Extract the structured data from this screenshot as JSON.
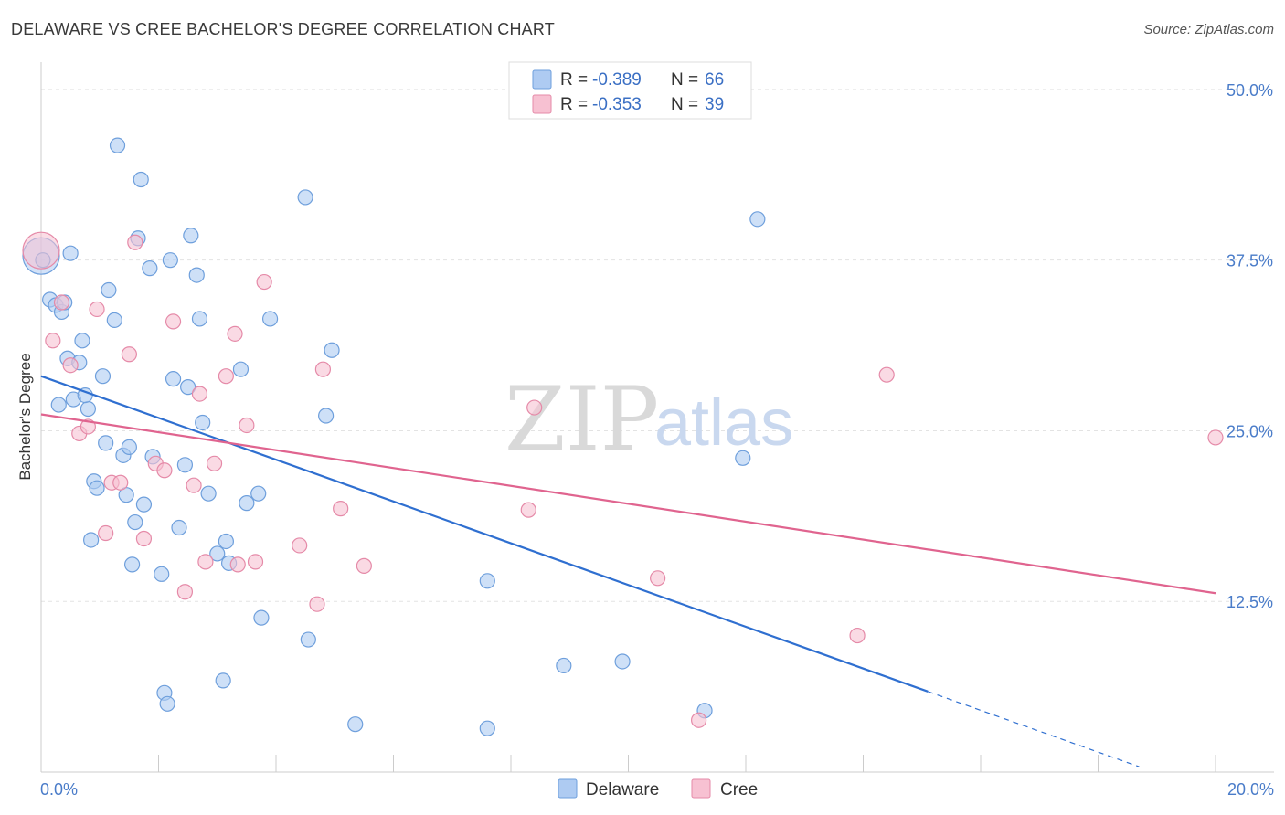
{
  "header": {
    "title": "DELAWARE VS CREE BACHELOR'S DEGREE CORRELATION CHART",
    "source": "Source: ZipAtlas.com"
  },
  "watermark": {
    "zip": "ZIP",
    "atlas": "atlas"
  },
  "legend_top": {
    "rows": [
      {
        "r_label": "R =",
        "r_value": "-0.389",
        "n_label": "N =",
        "n_value": "66"
      },
      {
        "r_label": "R =",
        "r_value": "-0.353",
        "n_label": "N =",
        "n_value": "39"
      }
    ]
  },
  "colors": {
    "delaware_fill": "#aecbf2",
    "delaware_stroke": "#6e9fdc",
    "delaware_line": "#2f6fd0",
    "cree_fill": "#f7c1d2",
    "cree_stroke": "#e58aa8",
    "cree_line": "#e0648f"
  },
  "chart_data": {
    "type": "scatter",
    "title": "DELAWARE VS CREE BACHELOR'S DEGREE CORRELATION CHART",
    "xlabel": "",
    "ylabel": "Bachelor's Degree",
    "xlim": [
      0,
      20
    ],
    "ylim": [
      0,
      52
    ],
    "x_tick_labels": {
      "min": "0.0%",
      "max": "20.0%"
    },
    "y_ticks": [
      12.5,
      25.0,
      37.5,
      50.0
    ],
    "y_tick_labels": [
      "12.5%",
      "25.0%",
      "37.5%",
      "50.0%"
    ],
    "grid": true,
    "legend": [
      "Delaware",
      "Cree"
    ],
    "series": [
      {
        "name": "Delaware",
        "r": -0.389,
        "n": 66,
        "trend": {
          "x0": 0.0,
          "y0": 29.0,
          "x1": 15.1,
          "y1": 5.9,
          "dash_to_x": 18.7
        },
        "points": [
          [
            0.0,
            37.8
          ],
          [
            0.03,
            37.5
          ],
          [
            0.15,
            34.6
          ],
          [
            0.25,
            34.2
          ],
          [
            0.35,
            33.7
          ],
          [
            0.4,
            34.4
          ],
          [
            0.5,
            38.0
          ],
          [
            0.45,
            30.3
          ],
          [
            0.65,
            30.0
          ],
          [
            0.7,
            31.6
          ],
          [
            0.3,
            26.9
          ],
          [
            0.55,
            27.3
          ],
          [
            0.8,
            26.6
          ],
          [
            0.75,
            27.6
          ],
          [
            1.05,
            29.0
          ],
          [
            1.15,
            35.3
          ],
          [
            1.25,
            33.1
          ],
          [
            1.1,
            24.1
          ],
          [
            1.4,
            23.2
          ],
          [
            1.5,
            23.8
          ],
          [
            0.9,
            21.3
          ],
          [
            0.95,
            20.8
          ],
          [
            1.45,
            20.3
          ],
          [
            1.6,
            18.3
          ],
          [
            1.75,
            19.6
          ],
          [
            1.9,
            23.1
          ],
          [
            1.55,
            15.2
          ],
          [
            2.05,
            14.5
          ],
          [
            0.85,
            17.0
          ],
          [
            1.3,
            45.9
          ],
          [
            1.7,
            43.4
          ],
          [
            1.65,
            39.1
          ],
          [
            1.85,
            36.9
          ],
          [
            2.2,
            37.5
          ],
          [
            2.55,
            39.3
          ],
          [
            2.65,
            36.4
          ],
          [
            2.7,
            33.2
          ],
          [
            2.25,
            28.8
          ],
          [
            2.5,
            28.2
          ],
          [
            2.75,
            25.6
          ],
          [
            2.45,
            22.5
          ],
          [
            2.85,
            20.4
          ],
          [
            2.35,
            17.9
          ],
          [
            3.0,
            16.0
          ],
          [
            3.15,
            16.9
          ],
          [
            3.2,
            15.3
          ],
          [
            3.4,
            29.5
          ],
          [
            3.5,
            19.7
          ],
          [
            3.7,
            20.4
          ],
          [
            3.9,
            33.2
          ],
          [
            4.5,
            42.1
          ],
          [
            4.95,
            30.9
          ],
          [
            4.85,
            26.1
          ],
          [
            3.75,
            11.3
          ],
          [
            4.55,
            9.7
          ],
          [
            2.1,
            5.8
          ],
          [
            2.15,
            5.0
          ],
          [
            3.1,
            6.7
          ],
          [
            5.35,
            3.5
          ],
          [
            7.6,
            3.2
          ],
          [
            7.6,
            14.0
          ],
          [
            8.9,
            7.8
          ],
          [
            9.9,
            8.1
          ],
          [
            11.3,
            4.5
          ],
          [
            11.95,
            23.0
          ],
          [
            12.2,
            40.5
          ]
        ]
      },
      {
        "name": "Cree",
        "r": -0.353,
        "n": 39,
        "trend": {
          "x0": 0.0,
          "y0": 26.2,
          "x1": 20.0,
          "y1": 13.1
        },
        "points": [
          [
            0.0,
            38.2
          ],
          [
            0.2,
            31.6
          ],
          [
            0.35,
            34.4
          ],
          [
            0.5,
            29.8
          ],
          [
            0.65,
            24.8
          ],
          [
            0.8,
            25.3
          ],
          [
            0.95,
            33.9
          ],
          [
            1.1,
            17.5
          ],
          [
            1.2,
            21.2
          ],
          [
            1.35,
            21.2
          ],
          [
            1.5,
            30.6
          ],
          [
            1.6,
            38.8
          ],
          [
            1.75,
            17.1
          ],
          [
            1.95,
            22.6
          ],
          [
            2.1,
            22.1
          ],
          [
            2.25,
            33.0
          ],
          [
            2.45,
            13.2
          ],
          [
            2.6,
            21.0
          ],
          [
            2.7,
            27.7
          ],
          [
            2.8,
            15.4
          ],
          [
            2.95,
            22.6
          ],
          [
            3.15,
            29.0
          ],
          [
            3.35,
            15.2
          ],
          [
            3.5,
            25.4
          ],
          [
            3.3,
            32.1
          ],
          [
            3.65,
            15.4
          ],
          [
            3.8,
            35.9
          ],
          [
            4.4,
            16.6
          ],
          [
            4.7,
            12.3
          ],
          [
            4.8,
            29.5
          ],
          [
            5.1,
            19.3
          ],
          [
            5.5,
            15.1
          ],
          [
            8.4,
            26.7
          ],
          [
            8.3,
            19.2
          ],
          [
            10.5,
            14.2
          ],
          [
            11.2,
            3.8
          ],
          [
            13.9,
            10.0
          ],
          [
            14.4,
            29.1
          ],
          [
            20.0,
            24.5
          ]
        ]
      }
    ]
  }
}
